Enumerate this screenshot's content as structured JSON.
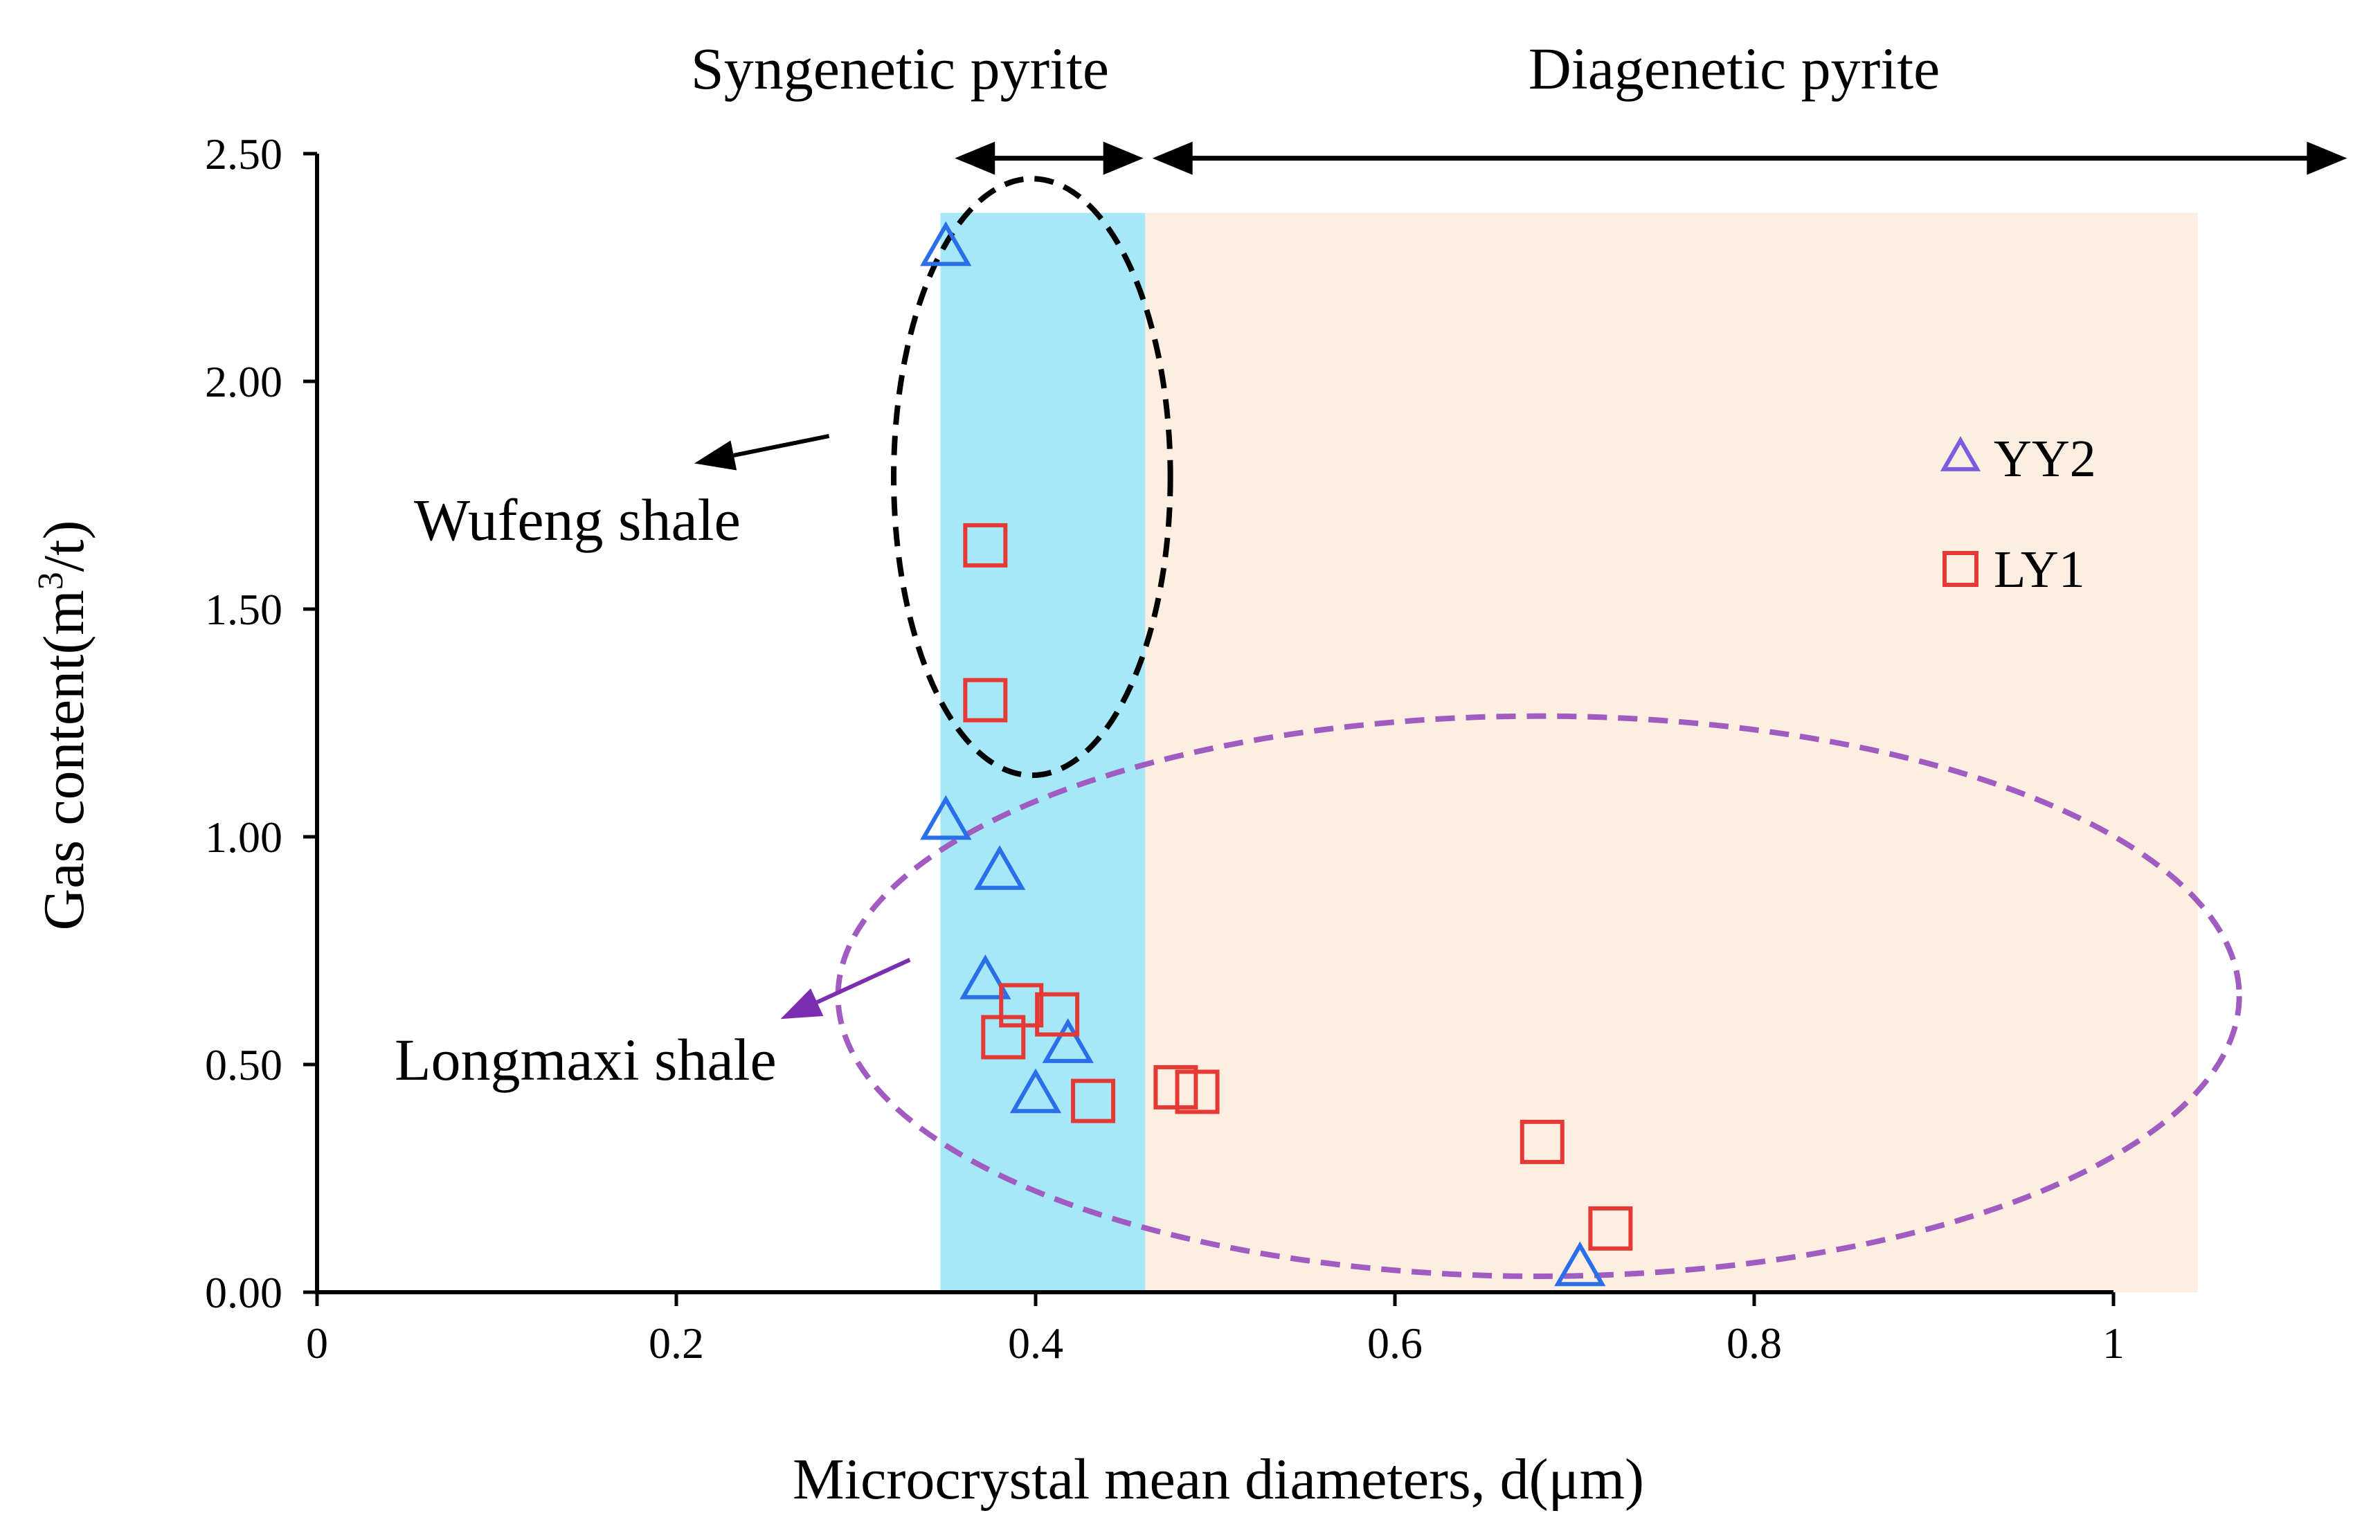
{
  "chart_data": {
    "type": "scatter",
    "title": "",
    "xlabel": "Microcrystal mean diameters, d(μm)",
    "ylabel": {
      "main": "Gas content(m",
      "sup": "3",
      "tail": "/t)"
    },
    "xlim": [
      0,
      1
    ],
    "ylim": [
      0,
      2.5
    ],
    "x_ticks": [
      0,
      0.2,
      0.4,
      0.6,
      0.8,
      1
    ],
    "x_tick_labels": [
      "0",
      "0.2",
      "0.4",
      "0.6",
      "0.8",
      "1"
    ],
    "y_ticks": [
      0,
      0.5,
      1.0,
      1.5,
      2.0,
      2.5
    ],
    "y_tick_labels": [
      "0.00",
      "0.50",
      "1.00",
      "1.50",
      "2.00",
      "2.50"
    ],
    "grid": false,
    "legend_position": "right",
    "colors": {
      "syngenetic_band": "#a6e8f8",
      "diagenetic_band": "#fdeee2",
      "yy2": "#2b6fe8",
      "yy2_legend": "#7a5ce0",
      "ly1": "#e53935",
      "wufeng_ellipse": "#000000",
      "longmaxi_ellipse": "#a05cc0",
      "longmaxi_arrow": "#7b2fb0"
    },
    "shaded_regions": [
      {
        "name": "Syngenetic pyrite",
        "x_from": 0.347,
        "x_to": 0.461,
        "y_top": 2.37
      },
      {
        "name": "Diagenetic pyrite",
        "x_from": 0.461,
        "x_to": 1.047,
        "y_top": 2.37
      }
    ],
    "region_labels": {
      "syngenetic": "Syngenetic pyrite",
      "diagenetic": "Diagenetic pyrite"
    },
    "region_arrows": [
      {
        "name": "syngenetic",
        "x_from": 0.355,
        "x_to": 0.46,
        "y": 2.49
      },
      {
        "name": "diagenetic",
        "x_from": 0.465,
        "x_to": 1.13,
        "y": 2.49
      }
    ],
    "series": [
      {
        "name": "YY2",
        "marker": "triangle",
        "points": [
          {
            "x": 0.35,
            "y": 2.29
          },
          {
            "x": 0.35,
            "y": 1.03
          },
          {
            "x": 0.38,
            "y": 0.92
          },
          {
            "x": 0.372,
            "y": 0.68
          },
          {
            "x": 0.418,
            "y": 0.54
          },
          {
            "x": 0.4,
            "y": 0.43
          },
          {
            "x": 0.703,
            "y": 0.05
          }
        ]
      },
      {
        "name": "LY1",
        "marker": "square",
        "points": [
          {
            "x": 0.372,
            "y": 1.64
          },
          {
            "x": 0.372,
            "y": 1.3
          },
          {
            "x": 0.392,
            "y": 0.63
          },
          {
            "x": 0.412,
            "y": 0.61
          },
          {
            "x": 0.382,
            "y": 0.56
          },
          {
            "x": 0.432,
            "y": 0.42
          },
          {
            "x": 0.478,
            "y": 0.45
          },
          {
            "x": 0.49,
            "y": 0.44
          },
          {
            "x": 0.682,
            "y": 0.33
          },
          {
            "x": 0.72,
            "y": 0.14
          }
        ]
      }
    ],
    "groups": [
      {
        "name": "Wufeng shale",
        "cx": 0.398,
        "cy": 1.79,
        "rx": 0.077,
        "ry": 0.655,
        "arrow_from": [
          0.285,
          1.88
        ],
        "arrow_to": [
          0.21,
          1.82
        ]
      },
      {
        "name": "Longmaxi shale",
        "cx": 0.68,
        "cy": 0.65,
        "rx": 0.39,
        "ry": 0.615,
        "arrow_from": [
          0.33,
          0.73
        ],
        "arrow_to": [
          0.258,
          0.6
        ]
      }
    ],
    "annotations": {
      "wufeng": "Wufeng shale",
      "longmaxi": "Longmaxi shale"
    },
    "legend": [
      {
        "name": "YY2",
        "marker": "triangle"
      },
      {
        "name": "LY1",
        "marker": "square"
      }
    ]
  }
}
